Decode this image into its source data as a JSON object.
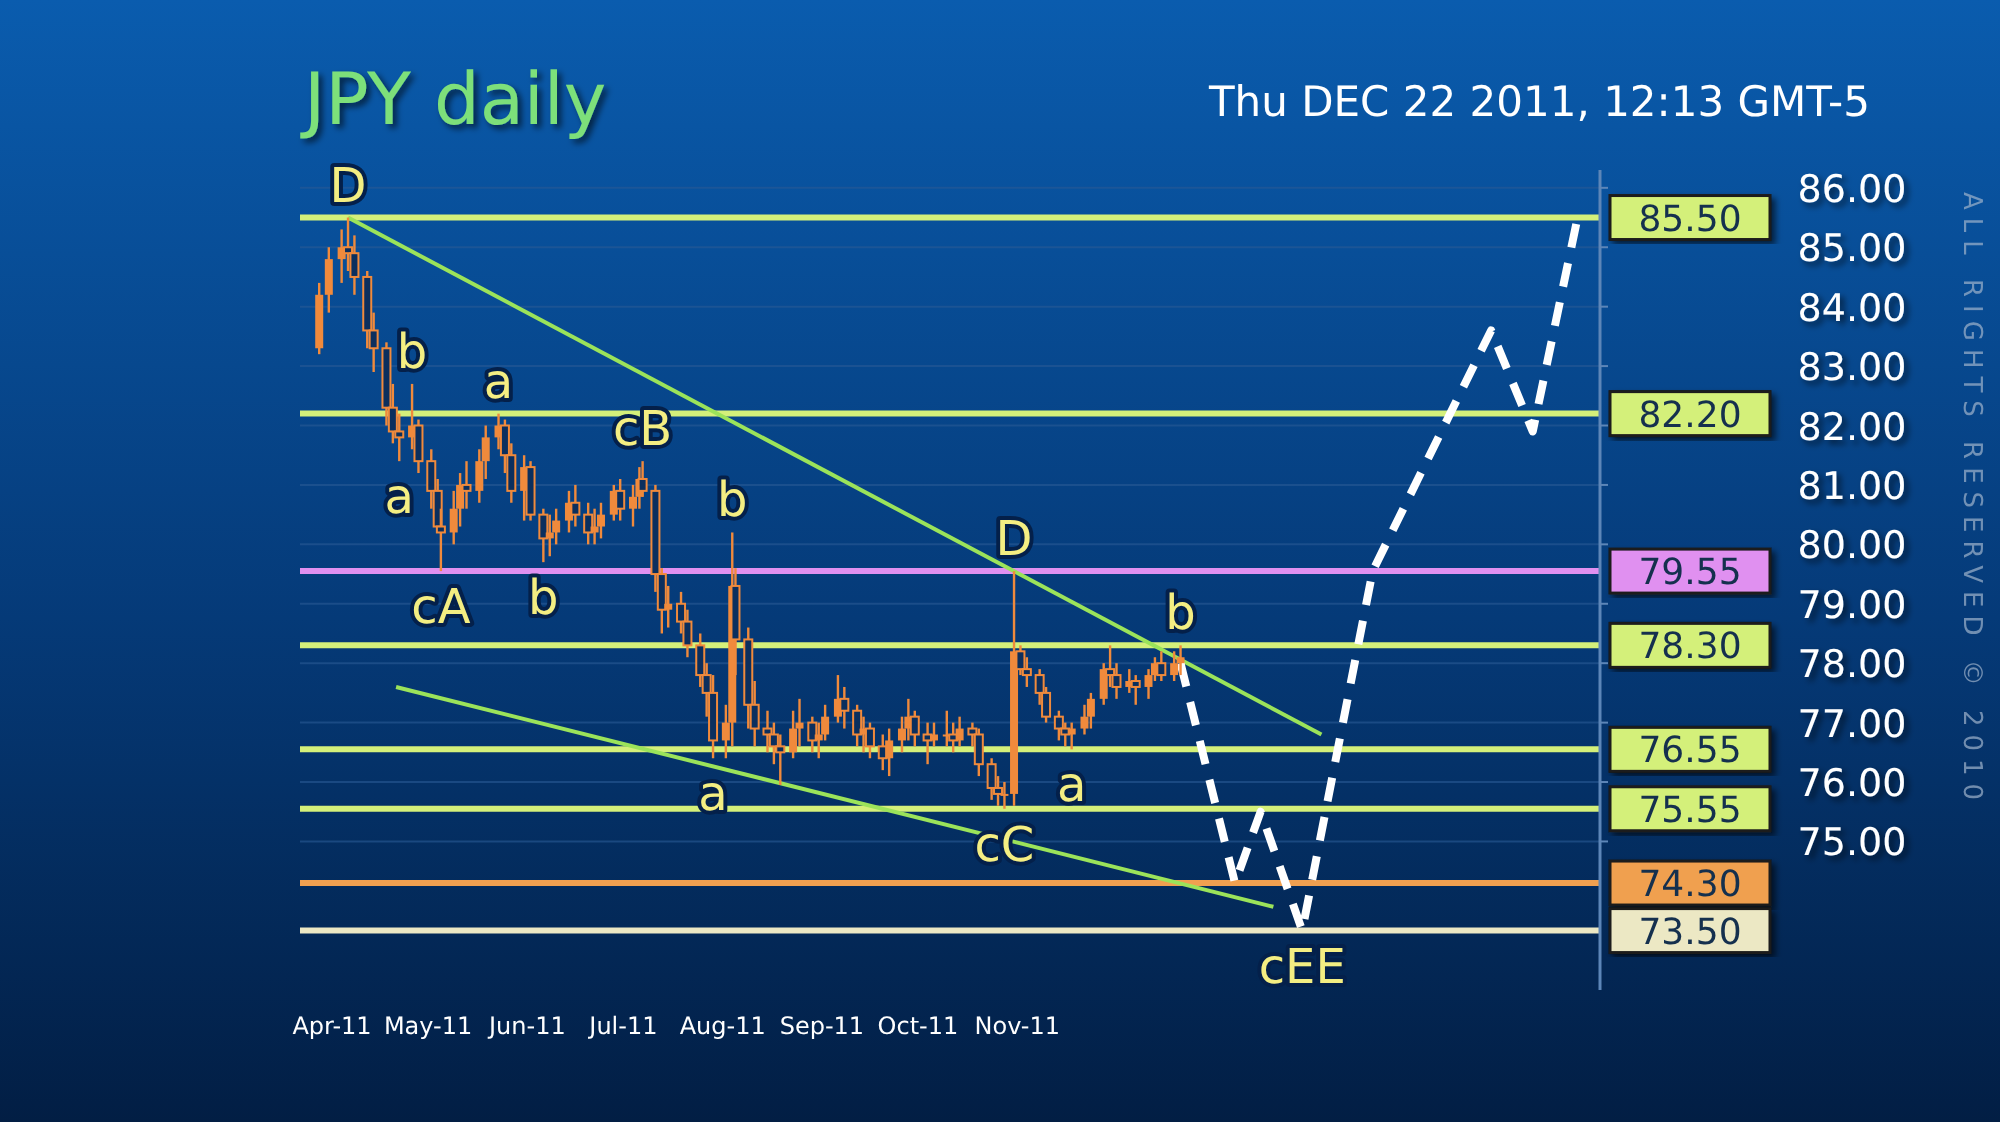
{
  "chart_data": {
    "type": "candlestick",
    "title": "JPY daily",
    "subtitle": "Thu DEC 22 2011, 12:13 GMT-5",
    "color": "#f08a3c",
    "x": [
      "2011-03-28",
      "2011-03-31",
      "2011-04-04",
      "2011-04-06",
      "2011-04-08",
      "2011-04-12",
      "2011-04-14",
      "2011-04-18",
      "2011-04-20",
      "2011-04-22",
      "2011-04-26",
      "2011-04-28",
      "2011-05-02",
      "2011-05-04",
      "2011-05-05",
      "2011-05-09",
      "2011-05-11",
      "2011-05-13",
      "2011-05-17",
      "2011-05-19",
      "2011-05-23",
      "2011-05-25",
      "2011-05-27",
      "2011-05-31",
      "2011-06-02",
      "2011-06-06",
      "2011-06-08",
      "2011-06-10",
      "2011-06-14",
      "2011-06-16",
      "2011-06-20",
      "2011-06-22",
      "2011-06-24",
      "2011-06-28",
      "2011-06-30",
      "2011-07-04",
      "2011-07-06",
      "2011-07-07",
      "2011-07-11",
      "2011-07-13",
      "2011-07-15",
      "2011-07-19",
      "2011-07-21",
      "2011-07-25",
      "2011-07-27",
      "2011-07-29",
      "2011-08-02",
      "2011-08-04",
      "2011-08-05",
      "2011-08-09",
      "2011-08-11",
      "2011-08-15",
      "2011-08-17",
      "2011-08-19",
      "2011-08-23",
      "2011-08-25",
      "2011-08-29",
      "2011-08-31",
      "2011-09-02",
      "2011-09-06",
      "2011-09-08",
      "2011-09-12",
      "2011-09-14",
      "2011-09-16",
      "2011-09-20",
      "2011-09-22",
      "2011-09-26",
      "2011-09-28",
      "2011-09-30",
      "2011-10-04",
      "2011-10-06",
      "2011-10-10",
      "2011-10-12",
      "2011-10-14",
      "2011-10-18",
      "2011-10-20",
      "2011-10-24",
      "2011-10-26",
      "2011-10-28",
      "2011-10-31",
      "2011-11-02",
      "2011-11-04",
      "2011-11-08",
      "2011-11-10",
      "2011-11-14",
      "2011-11-16",
      "2011-11-18",
      "2011-11-22",
      "2011-11-24",
      "2011-11-28",
      "2011-11-30",
      "2011-12-02",
      "2011-12-06",
      "2011-12-08",
      "2011-12-12",
      "2011-12-14",
      "2011-12-16",
      "2011-12-20",
      "2011-12-22"
    ],
    "ohlc": [
      [
        83.3,
        84.4,
        83.2,
        84.2
      ],
      [
        84.2,
        85.0,
        83.9,
        84.8
      ],
      [
        84.8,
        85.3,
        84.4,
        85.0
      ],
      [
        85.0,
        85.5,
        84.6,
        84.9
      ],
      [
        84.9,
        85.2,
        84.2,
        84.5
      ],
      [
        84.5,
        84.6,
        83.3,
        83.6
      ],
      [
        83.6,
        83.9,
        82.9,
        83.3
      ],
      [
        83.3,
        83.4,
        82.0,
        82.3
      ],
      [
        82.3,
        82.7,
        81.7,
        81.9
      ],
      [
        81.9,
        82.2,
        81.4,
        81.8
      ],
      [
        81.8,
        82.7,
        81.6,
        82.0
      ],
      [
        82.0,
        82.1,
        81.2,
        81.4
      ],
      [
        81.4,
        81.6,
        80.6,
        80.9
      ],
      [
        80.9,
        81.1,
        80.2,
        80.3
      ],
      [
        80.3,
        80.6,
        79.55,
        80.2
      ],
      [
        80.2,
        80.9,
        80.0,
        80.6
      ],
      [
        80.6,
        81.2,
        80.3,
        81.0
      ],
      [
        81.0,
        81.4,
        80.6,
        80.9
      ],
      [
        80.9,
        81.6,
        80.7,
        81.4
      ],
      [
        81.4,
        82.0,
        81.1,
        81.8
      ],
      [
        81.8,
        82.2,
        81.6,
        82.0
      ],
      [
        82.0,
        82.1,
        81.2,
        81.5
      ],
      [
        81.5,
        81.7,
        80.7,
        80.9
      ],
      [
        80.9,
        81.5,
        80.4,
        81.3
      ],
      [
        81.3,
        81.4,
        80.4,
        80.5
      ],
      [
        80.5,
        80.6,
        79.7,
        80.1
      ],
      [
        80.1,
        80.5,
        79.8,
        80.2
      ],
      [
        80.2,
        80.6,
        80.0,
        80.4
      ],
      [
        80.4,
        80.9,
        80.2,
        80.7
      ],
      [
        80.7,
        81.0,
        80.3,
        80.5
      ],
      [
        80.5,
        80.7,
        80.0,
        80.2
      ],
      [
        80.2,
        80.6,
        80.0,
        80.3
      ],
      [
        80.3,
        80.7,
        80.1,
        80.5
      ],
      [
        80.5,
        81.0,
        80.4,
        80.9
      ],
      [
        80.9,
        81.1,
        80.4,
        80.6
      ],
      [
        80.6,
        81.0,
        80.3,
        80.8
      ],
      [
        80.8,
        81.3,
        80.6,
        81.1
      ],
      [
        81.1,
        81.4,
        80.8,
        80.9
      ],
      [
        80.9,
        81.0,
        79.2,
        79.5
      ],
      [
        79.5,
        79.6,
        78.5,
        78.9
      ],
      [
        78.9,
        79.3,
        78.6,
        79.0
      ],
      [
        79.0,
        79.2,
        78.5,
        78.7
      ],
      [
        78.7,
        78.9,
        78.1,
        78.3
      ],
      [
        78.3,
        78.5,
        77.6,
        77.8
      ],
      [
        77.8,
        78.0,
        77.1,
        77.5
      ],
      [
        77.5,
        77.8,
        76.4,
        76.7
      ],
      [
        76.7,
        77.3,
        76.4,
        77.0
      ],
      [
        77.0,
        80.2,
        76.6,
        79.3
      ],
      [
        79.3,
        79.6,
        77.8,
        78.4
      ],
      [
        78.4,
        78.6,
        76.9,
        77.3
      ],
      [
        77.3,
        77.7,
        76.6,
        76.9
      ],
      [
        76.9,
        77.2,
        76.5,
        76.8
      ],
      [
        76.8,
        77.0,
        76.3,
        76.6
      ],
      [
        76.6,
        76.8,
        75.95,
        76.5
      ],
      [
        76.5,
        77.2,
        76.4,
        76.9
      ],
      [
        76.9,
        77.4,
        76.6,
        77.0
      ],
      [
        77.0,
        77.1,
        76.5,
        76.7
      ],
      [
        76.7,
        77.0,
        76.4,
        76.8
      ],
      [
        76.8,
        77.3,
        76.7,
        77.1
      ],
      [
        77.1,
        77.8,
        77.0,
        77.4
      ],
      [
        77.4,
        77.6,
        76.9,
        77.2
      ],
      [
        77.2,
        77.3,
        76.6,
        76.8
      ],
      [
        76.8,
        77.1,
        76.5,
        76.9
      ],
      [
        76.9,
        77.0,
        76.4,
        76.6
      ],
      [
        76.6,
        76.8,
        76.2,
        76.4
      ],
      [
        76.4,
        76.9,
        76.1,
        76.7
      ],
      [
        76.7,
        77.1,
        76.5,
        76.9
      ],
      [
        76.9,
        77.4,
        76.7,
        77.1
      ],
      [
        77.1,
        77.2,
        76.6,
        76.8
      ],
      [
        76.8,
        77.0,
        76.3,
        76.7
      ],
      [
        76.7,
        77.0,
        76.6,
        76.8
      ],
      [
        76.8,
        77.2,
        76.6,
        76.8
      ],
      [
        76.8,
        77.0,
        76.5,
        76.7
      ],
      [
        76.7,
        77.1,
        76.6,
        76.9
      ],
      [
        76.9,
        77.0,
        76.6,
        76.8
      ],
      [
        76.8,
        76.9,
        76.1,
        76.3
      ],
      [
        76.3,
        76.4,
        75.7,
        75.9
      ],
      [
        75.9,
        76.1,
        75.6,
        75.8
      ],
      [
        75.8,
        76.0,
        75.55,
        75.8
      ],
      [
        75.8,
        79.55,
        75.6,
        78.2
      ],
      [
        78.2,
        78.3,
        77.8,
        77.9
      ],
      [
        77.9,
        78.1,
        77.6,
        77.8
      ],
      [
        77.8,
        77.9,
        77.3,
        77.5
      ],
      [
        77.5,
        77.6,
        77.0,
        77.1
      ],
      [
        77.1,
        77.2,
        76.7,
        76.9
      ],
      [
        76.9,
        77.0,
        76.6,
        76.8
      ],
      [
        76.8,
        77.0,
        76.55,
        76.9
      ],
      [
        76.9,
        77.3,
        76.8,
        77.1
      ],
      [
        77.1,
        77.5,
        76.9,
        77.4
      ],
      [
        77.4,
        78.0,
        77.3,
        77.9
      ],
      [
        77.9,
        78.3,
        77.6,
        77.8
      ],
      [
        77.8,
        78.0,
        77.4,
        77.6
      ],
      [
        77.6,
        77.9,
        77.5,
        77.7
      ],
      [
        77.7,
        77.8,
        77.3,
        77.6
      ],
      [
        77.6,
        77.9,
        77.4,
        77.8
      ],
      [
        77.8,
        78.1,
        77.7,
        78.0
      ],
      [
        78.0,
        78.2,
        77.7,
        77.8
      ],
      [
        77.8,
        78.2,
        77.7,
        78.0
      ],
      [
        78.0,
        78.3,
        77.8,
        78.1
      ]
    ],
    "series": [
      {
        "type": "line",
        "color": "#9be35a",
        "line_style": "solid",
        "x": [
          "2011-04-06",
          "2012-02-04"
        ],
        "values": [
          85.5,
          76.8
        ]
      },
      {
        "type": "line",
        "color": "#9be35a",
        "line_style": "solid",
        "x": [
          "2011-04-21",
          "2012-01-20"
        ],
        "values": [
          77.6,
          73.9
        ]
      },
      {
        "type": "line",
        "color": "#ffffff",
        "line_style": "dashed",
        "x": [
          "2011-12-22",
          "2012-01-08",
          "2012-01-16",
          "2012-01-29",
          "2012-02-20",
          "2012-03-28",
          "2012-04-10",
          "2012-04-24"
        ],
        "values": [
          78.0,
          74.3,
          75.5,
          73.5,
          79.55,
          83.6,
          81.9,
          85.5
        ]
      }
    ],
    "ref_lines": [
      {
        "axis": "y",
        "value": 85.5,
        "label": "85.50",
        "color": "#d4f07a"
      },
      {
        "axis": "y",
        "value": 82.2,
        "label": "82.20",
        "color": "#d4f07a"
      },
      {
        "axis": "y",
        "value": 79.55,
        "label": "79.55",
        "color": "#e090f0"
      },
      {
        "axis": "y",
        "value": 78.3,
        "label": "78.30",
        "color": "#d4f07a"
      },
      {
        "axis": "y",
        "value": 76.55,
        "label": "76.55",
        "color": "#d4f07a"
      },
      {
        "axis": "y",
        "value": 75.55,
        "label": "75.55",
        "color": "#d4f07a"
      },
      {
        "axis": "y",
        "value": 74.3,
        "label": "74.30",
        "color": "#f0a050"
      },
      {
        "axis": "y",
        "value": 73.5,
        "label": "73.50",
        "color": "#ece8c4"
      }
    ],
    "annotations": [
      {
        "text": "D",
        "x": "2011-04-06",
        "y": 85.5
      },
      {
        "text": "b",
        "x": "2011-04-26",
        "y": 82.7
      },
      {
        "text": "a",
        "x": "2011-04-22",
        "y": 81.4
      },
      {
        "text": "a",
        "x": "2011-05-23",
        "y": 82.2
      },
      {
        "text": "cA",
        "x": "2011-05-05",
        "y": 79.55
      },
      {
        "text": "b",
        "x": "2011-06-06",
        "y": 79.7
      },
      {
        "text": "cB",
        "x": "2011-07-07",
        "y": 81.4
      },
      {
        "text": "b",
        "x": "2011-08-04",
        "y": 80.2
      },
      {
        "text": "a",
        "x": "2011-07-29",
        "y": 76.4
      },
      {
        "text": "D",
        "x": "2011-10-31",
        "y": 79.55
      },
      {
        "text": "b",
        "x": "2011-12-22",
        "y": 78.3
      },
      {
        "text": "a",
        "x": "2011-11-18",
        "y": 76.55
      },
      {
        "text": "cC",
        "x": "2011-10-28",
        "y": 75.55
      },
      {
        "text": "cEE",
        "x": "2012-01-29",
        "y": 73.5
      },
      "ALL RIGHTS RESERVED © 2010"
    ],
    "xlim": [
      "2011-03-22",
      "2012-05-01"
    ],
    "xticks": [
      {
        "value": "2011-04-01",
        "label": "Apr-11"
      },
      {
        "value": "2011-05-01",
        "label": "May-11"
      },
      {
        "value": "2011-06-01",
        "label": "Jun-11"
      },
      {
        "value": "2011-07-01",
        "label": "Jul-11"
      },
      {
        "value": "2011-08-01",
        "label": "Aug-11"
      },
      {
        "value": "2011-09-01",
        "label": "Sep-11"
      },
      {
        "value": "2011-10-01",
        "label": "Oct-11"
      },
      {
        "value": "2011-11-01",
        "label": "Nov-11"
      }
    ],
    "ylim": [
      72.5,
      86.3
    ],
    "yticks": [
      {
        "value": 75,
        "label": "75.00"
      },
      {
        "value": 76,
        "label": "76.00"
      },
      {
        "value": 77,
        "label": "77.00"
      },
      {
        "value": 78,
        "label": "78.00"
      },
      {
        "value": 79,
        "label": "79.00"
      },
      {
        "value": 80,
        "label": "80.00"
      },
      {
        "value": 81,
        "label": "81.00"
      },
      {
        "value": 82,
        "label": "82.00"
      },
      {
        "value": 83,
        "label": "83.00"
      },
      {
        "value": 84,
        "label": "84.00"
      },
      {
        "value": 85,
        "label": "85.00"
      },
      {
        "value": 86,
        "label": "86.00"
      }
    ],
    "grid": "y"
  }
}
